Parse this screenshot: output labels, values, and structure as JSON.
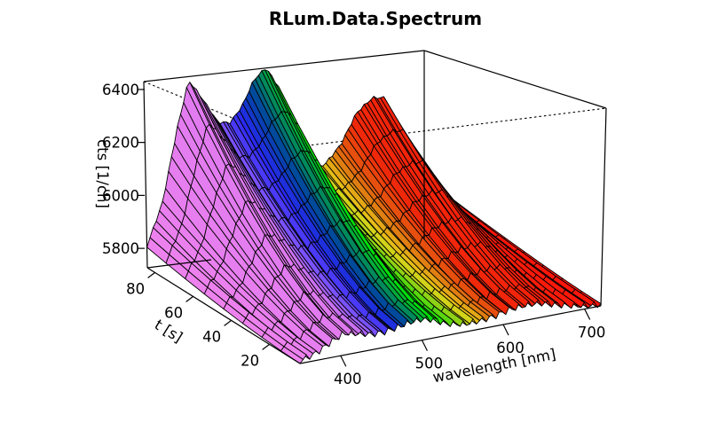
{
  "chart_data": {
    "type": "surface3d",
    "title": "RLum.Data.Spectrum",
    "xlabel": "wavelength [nm]",
    "ylabel": "t [s]",
    "zlabel": "cts [1/ch]",
    "x_ticks": [
      400,
      500,
      600,
      700
    ],
    "y_ticks": [
      20,
      40,
      60,
      80
    ],
    "z_ticks": [
      5800,
      6000,
      6200,
      6400
    ],
    "xlim": [
      350,
      720
    ],
    "ylim": [
      4,
      84
    ],
    "zlim": [
      5700,
      6480
    ],
    "color_scale": "rainbow by wavelength (violet -> blue -> green -> yellow -> orange -> red)",
    "peaks": [
      {
        "wavelength_nm": 405,
        "time_s": 80,
        "cts": 6450,
        "color": "violet"
      },
      {
        "wavelength_nm": 500,
        "time_s": 80,
        "cts": 6440,
        "color": "green"
      },
      {
        "wavelength_nm": 640,
        "time_s": 80,
        "cts": 6230,
        "color": "red"
      }
    ],
    "baseline_cts": 5700,
    "time_series_shape": "intensity increases with time; maximum at t = 80 s",
    "wavelength_profile_at_t80": {
      "wavelength_nm": [
        350,
        370,
        390,
        405,
        420,
        440,
        455,
        470,
        485,
        500,
        515,
        530,
        550,
        570,
        590,
        610,
        630,
        645,
        660,
        680,
        700,
        720
      ],
      "cts": [
        5790,
        5960,
        6260,
        6450,
        6370,
        6250,
        6240,
        6300,
        6400,
        6440,
        6350,
        6120,
        5980,
        5990,
        6060,
        6180,
        6230,
        6220,
        6100,
        5930,
        5810,
        5760
      ]
    }
  },
  "colors": {
    "violet": "#ee82ee",
    "blue": "#3333ff",
    "green": "#00ee00",
    "yellow": "#e6d21a",
    "orange": "#e06a10",
    "red": "#ff1a0a"
  }
}
